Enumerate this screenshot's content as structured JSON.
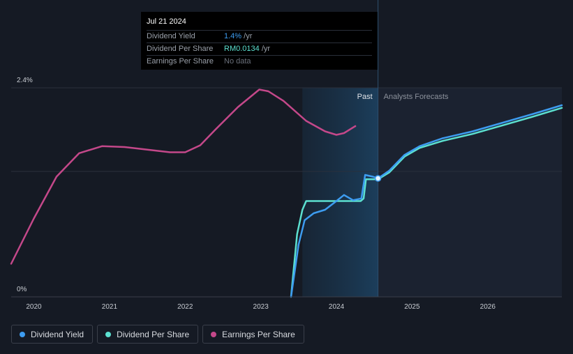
{
  "tooltip": {
    "date": "Jul 21 2024",
    "rows": [
      {
        "label": "Dividend Yield",
        "value": "1.4%",
        "unit": " /yr",
        "color": "#3d9cf0"
      },
      {
        "label": "Dividend Per Share",
        "value": "RM0.0134",
        "unit": " /yr",
        "color": "#5ce0d0"
      },
      {
        "label": "Earnings Per Share",
        "value": "No data",
        "unit": "",
        "color": "#6b717c"
      }
    ]
  },
  "chart_data": {
    "type": "line",
    "x_ticks": [
      "2020",
      "2021",
      "2022",
      "2023",
      "2024",
      "2025",
      "2026"
    ],
    "y_tick_labels": [
      "2.4%",
      "0%"
    ],
    "past_label": "Past",
    "forecast_label": "Analysts Forecasts",
    "past_boundary": 2024.55,
    "shaded_region_start": 2023.55,
    "x_range": [
      2019.7,
      2026.98
    ],
    "y_range": [
      0,
      2.4
    ],
    "grid": true,
    "series": [
      {
        "name": "Dividend Yield",
        "color": "#3d9cf0",
        "points": [
          [
            2023.4,
            0
          ],
          [
            2023.5,
            0.6
          ],
          [
            2023.58,
            0.88
          ],
          [
            2023.7,
            0.96
          ],
          [
            2023.85,
            1.0
          ],
          [
            2024.0,
            1.1
          ],
          [
            2024.1,
            1.17
          ],
          [
            2024.22,
            1.11
          ],
          [
            2024.33,
            1.13
          ],
          [
            2024.38,
            1.4
          ],
          [
            2024.48,
            1.38
          ],
          [
            2024.55,
            1.36
          ],
          [
            2024.7,
            1.45
          ],
          [
            2024.9,
            1.63
          ],
          [
            2025.1,
            1.73
          ],
          [
            2025.4,
            1.82
          ],
          [
            2025.8,
            1.9
          ],
          [
            2026.2,
            2.0
          ],
          [
            2026.6,
            2.1
          ],
          [
            2026.98,
            2.2
          ]
        ]
      },
      {
        "name": "Dividend Per Share",
        "color": "#5ce0d0",
        "points": [
          [
            2023.4,
            0
          ],
          [
            2023.48,
            0.72
          ],
          [
            2023.55,
            1.0
          ],
          [
            2023.6,
            1.1
          ],
          [
            2024.32,
            1.1
          ],
          [
            2024.36,
            1.13
          ],
          [
            2024.39,
            1.35
          ],
          [
            2024.55,
            1.35
          ],
          [
            2024.7,
            1.43
          ],
          [
            2024.9,
            1.61
          ],
          [
            2025.1,
            1.71
          ],
          [
            2025.4,
            1.79
          ],
          [
            2025.8,
            1.87
          ],
          [
            2026.2,
            1.97
          ],
          [
            2026.6,
            2.07
          ],
          [
            2026.98,
            2.17
          ]
        ]
      },
      {
        "name": "Earnings Per Share",
        "color": "#c4488a",
        "points": [
          [
            2019.7,
            0.38
          ],
          [
            2020.0,
            0.9
          ],
          [
            2020.3,
            1.38
          ],
          [
            2020.6,
            1.65
          ],
          [
            2020.9,
            1.73
          ],
          [
            2021.2,
            1.72
          ],
          [
            2021.5,
            1.69
          ],
          [
            2021.8,
            1.66
          ],
          [
            2022.0,
            1.66
          ],
          [
            2022.2,
            1.74
          ],
          [
            2022.4,
            1.92
          ],
          [
            2022.7,
            2.18
          ],
          [
            2022.98,
            2.38
          ],
          [
            2023.1,
            2.36
          ],
          [
            2023.3,
            2.25
          ],
          [
            2023.6,
            2.02
          ],
          [
            2023.85,
            1.9
          ],
          [
            2024.0,
            1.86
          ],
          [
            2024.1,
            1.88
          ],
          [
            2024.25,
            1.96
          ]
        ]
      }
    ],
    "marker": {
      "x": 2024.55,
      "y": 1.36
    }
  },
  "legend": [
    {
      "label": "Dividend Yield",
      "color": "#3d9cf0"
    },
    {
      "label": "Dividend Per Share",
      "color": "#5ce0d0"
    },
    {
      "label": "Earnings Per Share",
      "color": "#c4488a"
    }
  ]
}
